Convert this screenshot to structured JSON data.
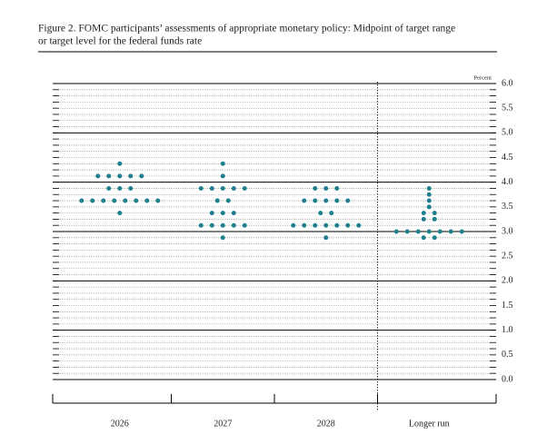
{
  "chart_data": {
    "type": "dot",
    "title": "Figure 2. FOMC participants’ assessments of appropriate monetary policy: Midpoint of target range",
    "subtitle": "or target level for the federal funds rate",
    "y_label": "Percent",
    "categories": [
      "2026",
      "2027",
      "2028",
      "Longer run"
    ],
    "color": "#1f7f8f",
    "values": [
      [
        4.375,
        4.125,
        4.125,
        4.125,
        4.125,
        4.125,
        3.875,
        3.875,
        3.875,
        3.625,
        3.625,
        3.625,
        3.625,
        3.625,
        3.625,
        3.625,
        3.625,
        3.375
      ],
      [
        4.375,
        4.125,
        3.875,
        3.875,
        3.875,
        3.875,
        3.875,
        3.625,
        3.625,
        3.375,
        3.375,
        3.375,
        3.125,
        3.125,
        3.125,
        3.125,
        3.125,
        2.875
      ],
      [
        3.875,
        3.875,
        3.875,
        3.625,
        3.625,
        3.625,
        3.625,
        3.625,
        3.375,
        3.375,
        3.125,
        3.125,
        3.125,
        3.125,
        3.125,
        3.125,
        3.125,
        2.875
      ],
      [
        3.875,
        3.75,
        3.625,
        3.5,
        3.375,
        3.375,
        3.25,
        3.25,
        3,
        3,
        3,
        3,
        3,
        3,
        3,
        2.875,
        2.875
      ]
    ],
    "ylim": [
      0,
      6
    ],
    "yticks": [
      {
        "value": 0,
        "label": "0.0"
      },
      0.5,
      {
        "value": 1,
        "label": "1.0"
      },
      1.5,
      {
        "value": 2,
        "label": "2.0"
      },
      2.5,
      {
        "value": 3,
        "label": "3.0"
      },
      3.5,
      {
        "value": 4,
        "label": "4.0"
      },
      4.5,
      {
        "value": 5,
        "label": "5.0"
      },
      5.5,
      {
        "value": 6,
        "label": "6.0"
      }
    ]
  }
}
